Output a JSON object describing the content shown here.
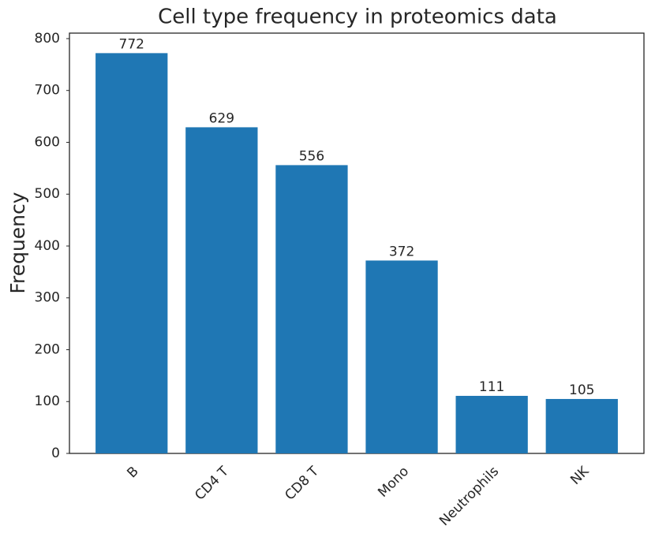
{
  "chart_data": {
    "type": "bar",
    "title": "Cell type frequency in proteomics data",
    "y_label": "Frequency",
    "categories": [
      "B",
      "CD4 T",
      "CD8 T",
      "Mono",
      "Neutrophils",
      "NK"
    ],
    "values": [
      772,
      629,
      556,
      372,
      111,
      105
    ],
    "color": "#1f77b4",
    "ylim": [
      0,
      810.6
    ],
    "yticks": [
      0,
      100,
      200,
      300,
      400,
      500,
      600,
      700,
      800
    ],
    "grid": false
  }
}
